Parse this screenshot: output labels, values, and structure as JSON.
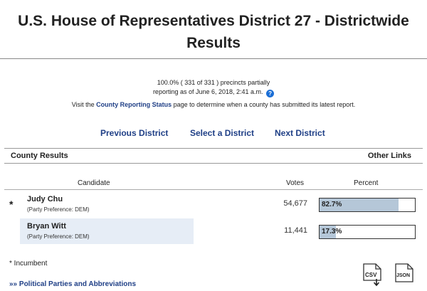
{
  "title": "U.S. House of Representatives District 27 - Districtwide Results",
  "status": {
    "line1": "100.0% ( 331 of 331 ) precincts partially",
    "line2": "reporting as of June 6, 2018, 2:41 a.m.",
    "help_icon": "?"
  },
  "visit": {
    "prefix": "Visit the ",
    "link": "County Reporting Status",
    "suffix": " page to determine when a county has submitted its latest report."
  },
  "nav": {
    "previous": "Previous District",
    "select": "Select a District",
    "next": "Next District"
  },
  "section": {
    "left": "County Results",
    "right": "Other Links"
  },
  "table": {
    "headers": {
      "candidate": "Candidate",
      "votes": "Votes",
      "percent": "Percent"
    },
    "rows": [
      {
        "marker": "*",
        "name": "Judy Chu",
        "party": "(Party Preference: DEM)",
        "votes": "54,677",
        "percent_label": "82.7%",
        "percent": 82.7
      },
      {
        "marker": "",
        "name": "Bryan Witt",
        "party": "(Party Preference: DEM)",
        "votes": "11,441",
        "percent_label": "17.3%",
        "percent": 17.3
      }
    ]
  },
  "footer": {
    "incumbent": "* Incumbent",
    "parties_link": "»» Political Parties and Abbreviations"
  },
  "downloads": {
    "csv": "CSV",
    "json": "JSON"
  }
}
